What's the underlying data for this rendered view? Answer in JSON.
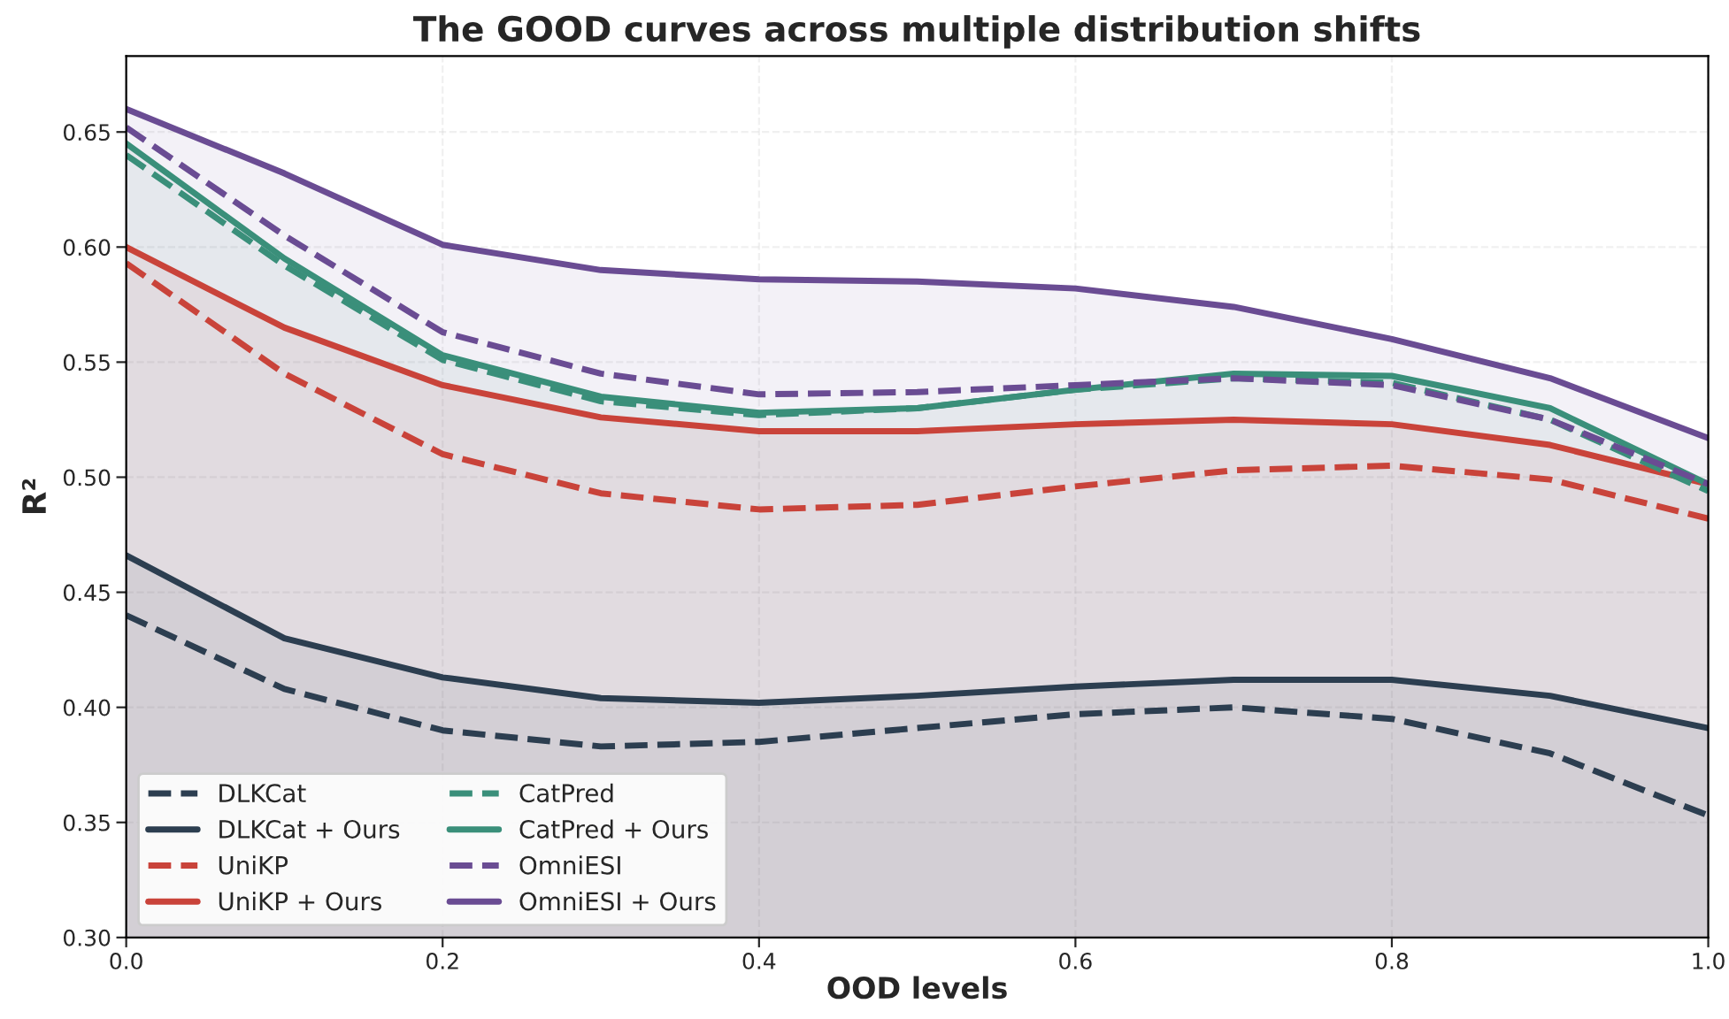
{
  "chart_data": {
    "type": "line",
    "title": "The GOOD curves across multiple distribution shifts",
    "xlabel": "OOD levels",
    "ylabel": "R²",
    "x": [
      0,
      0.1,
      0.2,
      0.3,
      0.4,
      0.5,
      0.6,
      0.7,
      0.8,
      0.9,
      1.0
    ],
    "series": [
      {
        "name": "DLKCat",
        "line_style": "dashed",
        "color": "#2c3e50",
        "values": [
          0.44,
          0.408,
          0.39,
          0.383,
          0.385,
          0.391,
          0.397,
          0.4,
          0.395,
          0.38,
          0.353
        ]
      },
      {
        "name": "DLKCat + Ours",
        "type": "area",
        "line_style": "solid",
        "color": "#2c3e50",
        "values": [
          0.466,
          0.43,
          0.413,
          0.404,
          0.402,
          0.405,
          0.409,
          0.412,
          0.412,
          0.405,
          0.391
        ]
      },
      {
        "name": "UniKP",
        "line_style": "dashed",
        "color": "#c9433a",
        "values": [
          0.593,
          0.545,
          0.51,
          0.493,
          0.486,
          0.488,
          0.496,
          0.503,
          0.505,
          0.499,
          0.482
        ]
      },
      {
        "name": "UniKP + Ours",
        "type": "area",
        "line_style": "solid",
        "color": "#c9433a",
        "values": [
          0.6,
          0.565,
          0.54,
          0.526,
          0.52,
          0.52,
          0.523,
          0.525,
          0.523,
          0.514,
          0.497
        ]
      },
      {
        "name": "CatPred",
        "line_style": "dashed",
        "color": "#3a8f7a",
        "values": [
          0.64,
          0.592,
          0.551,
          0.533,
          0.527,
          0.53,
          0.538,
          0.543,
          0.541,
          0.525,
          0.494
        ]
      },
      {
        "name": "CatPred + Ours",
        "type": "area",
        "line_style": "solid",
        "color": "#3a8f7a",
        "values": [
          0.645,
          0.595,
          0.553,
          0.535,
          0.528,
          0.53,
          0.538,
          0.545,
          0.544,
          0.53,
          0.497
        ]
      },
      {
        "name": "OmniESI",
        "line_style": "dashed",
        "color": "#6a4c93",
        "values": [
          0.652,
          0.605,
          0.563,
          0.545,
          0.536,
          0.537,
          0.54,
          0.543,
          0.54,
          0.525,
          0.497
        ]
      },
      {
        "name": "OmniESI + Ours",
        "type": "area",
        "line_style": "solid",
        "color": "#6a4c93",
        "values": [
          0.66,
          0.632,
          0.601,
          0.59,
          0.586,
          0.585,
          0.582,
          0.574,
          0.56,
          0.543,
          0.517
        ]
      }
    ],
    "xlim": [
      0,
      1.0
    ],
    "xticks": [
      {
        "value": 0,
        "label": "0.0"
      },
      0.2,
      0.4,
      0.6,
      0.8,
      {
        "value": 1.0,
        "label": "1.0"
      }
    ],
    "ylim": [
      0.3,
      0.683
    ],
    "yticks": [
      {
        "value": 0.3,
        "label": "0.30"
      },
      0.35,
      {
        "value": 0.4,
        "label": "0.40"
      },
      0.45,
      {
        "value": 0.5,
        "label": "0.50"
      },
      0.55,
      {
        "value": 0.6,
        "label": "0.60"
      },
      0.65
    ],
    "grid": true,
    "legend": "bottom left"
  }
}
